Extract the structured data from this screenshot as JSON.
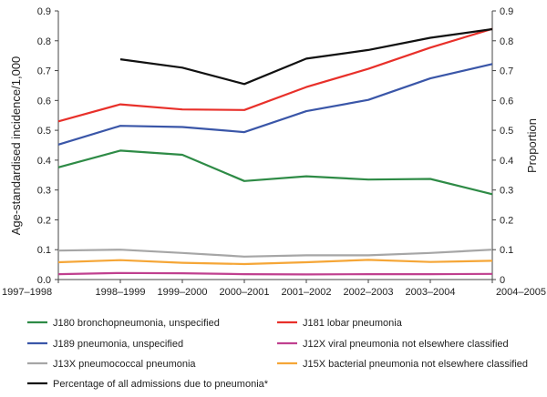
{
  "chart_data": {
    "type": "line",
    "ylabel": "Age-standardised incidence/1,000",
    "y2label": "Proportion",
    "ylim": [
      0,
      0.9
    ],
    "y2lim": [
      0,
      0.9
    ],
    "yticks": [
      "0.0",
      "0.1",
      "0.2",
      "0.3",
      "0.4",
      "0.5",
      "0.6",
      "0.7",
      "0.8",
      "0.9"
    ],
    "y2ticks": [
      "0",
      "0.1",
      "0.2",
      "0.3",
      "0.4",
      "0.5",
      "0.6",
      "0.7",
      "0.8",
      "0.9"
    ],
    "categories": [
      "1997–1998",
      "1998–1999",
      "1999–2000",
      "2000–2001",
      "2001–2002",
      "2002–2003",
      "2003–2004",
      "2004–2005"
    ],
    "legend_placement": "bottom",
    "grid": false,
    "series": [
      {
        "name": "J180 bronchopneumonia, unspecified",
        "color": "#2e8b46",
        "values": [
          0.376,
          0.432,
          0.418,
          0.33,
          0.346,
          0.335,
          0.337,
          0.286
        ]
      },
      {
        "name": "J181 lobar pneumonia",
        "color": "#e8302a",
        "values": [
          0.53,
          0.587,
          0.57,
          0.568,
          0.645,
          0.706,
          0.777,
          0.84
        ]
      },
      {
        "name": "J189 pneumonia, unspecified",
        "color": "#3a56a8",
        "values": [
          0.452,
          0.515,
          0.511,
          0.494,
          0.564,
          0.602,
          0.674,
          0.722
        ]
      },
      {
        "name": "J12X viral pneumonia not elsewhere classified",
        "color": "#c0408f",
        "values": [
          0.018,
          0.022,
          0.021,
          0.018,
          0.017,
          0.018,
          0.018,
          0.019
        ]
      },
      {
        "name": "J13X pneumococcal pneumonia",
        "color": "#a6a6a6",
        "values": [
          0.097,
          0.1,
          0.089,
          0.077,
          0.081,
          0.081,
          0.089,
          0.1
        ]
      },
      {
        "name": "J15X bacterial pneumonia not elsewhere classified",
        "color": "#f5a637",
        "values": [
          0.058,
          0.065,
          0.056,
          0.052,
          0.058,
          0.066,
          0.059,
          0.063
        ]
      },
      {
        "name": "Percentage of all admissions due to pneumonia*",
        "color": "#111111",
        "values": [
          null,
          0.738,
          0.71,
          0.655,
          0.74,
          0.769,
          0.81,
          0.839
        ]
      }
    ]
  }
}
